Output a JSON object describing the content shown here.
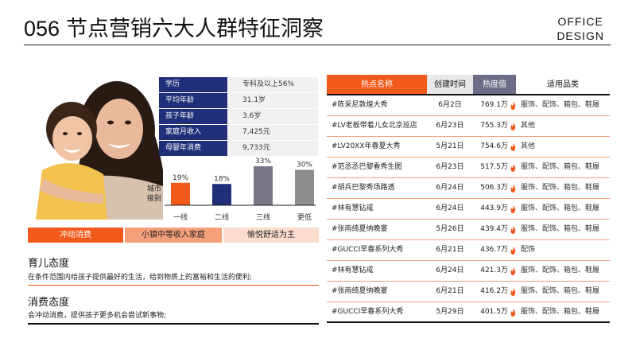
{
  "header": {
    "number": "056",
    "title": "节点营销六大人群特征洞察",
    "brand_line1": "OFFICE",
    "brand_line2": "DESIGN"
  },
  "profile": {
    "stats": [
      {
        "label": "学历",
        "value": "专科及以上56%"
      },
      {
        "label": "平均年龄",
        "value": "31.1岁"
      },
      {
        "label": "孩子年龄",
        "value": "3.6岁"
      },
      {
        "label": "家庭月收入",
        "value": "7,425元"
      },
      {
        "label": "母婴年消费",
        "value": "9,733元"
      }
    ],
    "tags": [
      "冲动消费",
      "小镇中等收入家庭",
      "愉悦舒适为主"
    ]
  },
  "chart_data": {
    "type": "bar",
    "ylabel": "城市级别",
    "categories": [
      "一线",
      "二线",
      "三线",
      "更低"
    ],
    "values": [
      19,
      18,
      33,
      30
    ],
    "value_labels": [
      "19%",
      "18%",
      "33%",
      "30%"
    ],
    "ylim": [
      0,
      35
    ],
    "colors": [
      "#f25a1b",
      "#1f2f7a",
      "#7b7789",
      "#8e8e8e"
    ]
  },
  "sections": [
    {
      "heading": "育儿态度",
      "text": "在条件范围内给孩子提供最好的生活，给到物质上的富裕和生活的便利;"
    },
    {
      "heading": "消费态度",
      "text": "会冲动消费，提供孩子更多机会尝试新事物;"
    }
  ],
  "hot_table": {
    "headers": [
      "热点名称",
      "创建时间",
      "热度值",
      "适用品类"
    ],
    "rows": [
      {
        "name": "#陈采尼敦煌大秀",
        "date": "6月2日",
        "heat": "769.1万",
        "category": "服饰、配饰、箱包、鞋履"
      },
      {
        "name": "#LV老板带着儿女北京巡店",
        "date": "6月23日",
        "heat": "755.3万",
        "category": "其他"
      },
      {
        "name": "#LV20XX年春夏大秀",
        "date": "5月21日",
        "heat": "754.6万",
        "category": "其他"
      },
      {
        "name": "#范丞丞巴黎看秀生图",
        "date": "6月23日",
        "heat": "517.5万",
        "category": "服饰、配饰、箱包、鞋履"
      },
      {
        "name": "#胡兵巴黎秀场路透",
        "date": "6月24日",
        "heat": "506.3万",
        "category": "服饰、配饰、箱包、鞋履"
      },
      {
        "name": "#林有慧钻戒",
        "date": "6月24日",
        "heat": "443.9万",
        "category": "服饰、配饰、箱包、鞋履"
      },
      {
        "name": "#张雨绮夏纳晚宴",
        "date": "5月26日",
        "heat": "439.4万",
        "category": "服饰、配饰、箱包、鞋履"
      },
      {
        "name": "#GUCCI早春系列大秀",
        "date": "6月21日",
        "heat": "436.7万",
        "category": "配饰"
      },
      {
        "name": "#林有慧钻戒",
        "date": "6月24日",
        "heat": "421.3万",
        "category": "服饰、配饰、箱包、鞋履"
      },
      {
        "name": "#张雨绮夏纳晚宴",
        "date": "6月21日",
        "heat": "416.2万",
        "category": "服饰、配饰、箱包、鞋履"
      },
      {
        "name": "#GUCCI早春系列大秀",
        "date": "5月29日",
        "heat": "401.5万",
        "category": "服饰、配饰、箱包、鞋履"
      }
    ]
  }
}
